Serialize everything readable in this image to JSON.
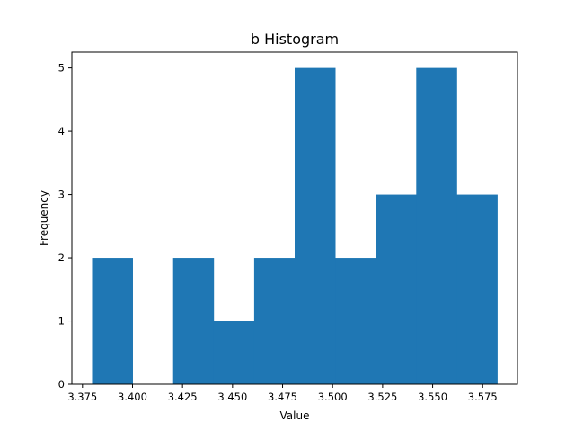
{
  "chart_data": {
    "type": "bar",
    "title": "b Histogram",
    "xlabel": "Value",
    "ylabel": "Frequency",
    "bin_edges": [
      3.3798,
      3.40005,
      3.4203,
      3.44055,
      3.4608,
      3.48105,
      3.5013,
      3.52155,
      3.5418,
      3.56205,
      3.5823
    ],
    "values": [
      2,
      0,
      2,
      1,
      2,
      5,
      2,
      3,
      5,
      3
    ],
    "xlim": [
      3.3697,
      3.5924
    ],
    "ylim": [
      0,
      5.25
    ],
    "xticks": [
      3.375,
      3.4,
      3.425,
      3.45,
      3.475,
      3.5,
      3.525,
      3.55,
      3.575
    ],
    "xtick_labels": [
      "3.375",
      "3.400",
      "3.425",
      "3.450",
      "3.475",
      "3.500",
      "3.525",
      "3.550",
      "3.575"
    ],
    "yticks": [
      0,
      1,
      2,
      3,
      4,
      5
    ],
    "ytick_labels": [
      "0",
      "1",
      "2",
      "3",
      "4",
      "5"
    ],
    "bar_color": "#1f77b4",
    "grid": false,
    "legend": "none"
  }
}
